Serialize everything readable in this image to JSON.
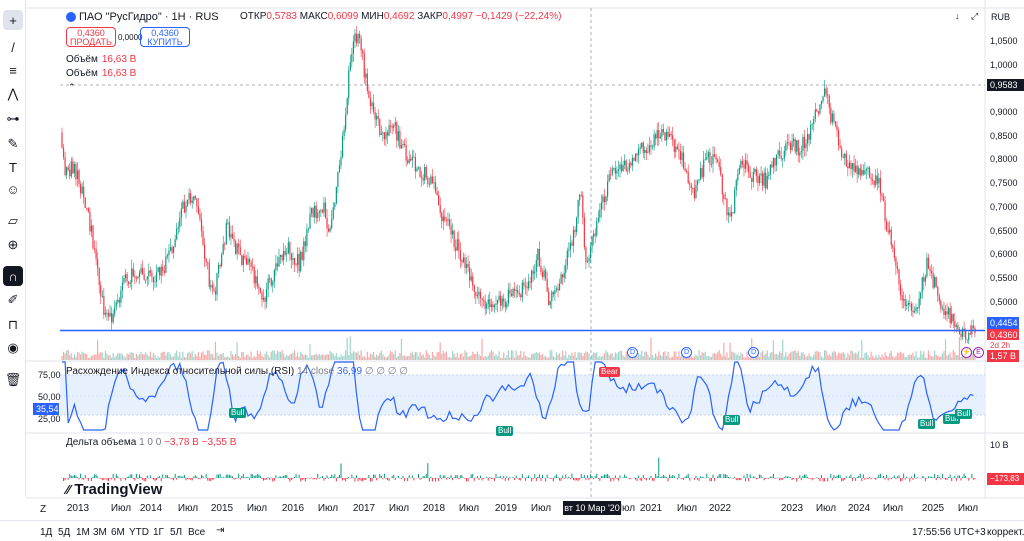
{
  "toolbar": {
    "tools": [
      {
        "name": "crosshair-icon",
        "glyph": "+"
      },
      {
        "name": "trendline-icon",
        "glyph": "/"
      },
      {
        "name": "horizontal-lines-icon",
        "glyph": "≡"
      },
      {
        "name": "pattern-icon",
        "glyph": "⋀"
      },
      {
        "name": "fib-icon",
        "glyph": "⊶"
      },
      {
        "name": "brush-icon",
        "glyph": "✎"
      },
      {
        "name": "text-icon",
        "glyph": "T"
      },
      {
        "name": "emoji-icon",
        "glyph": "☺"
      },
      {
        "name": "ruler-icon",
        "glyph": "▱"
      },
      {
        "name": "zoom-icon",
        "glyph": "⊕"
      },
      {
        "name": "magnet-icon",
        "glyph": "∩"
      },
      {
        "name": "pencil-lock-icon",
        "glyph": "✐"
      },
      {
        "name": "lock-icon",
        "glyph": "⊓"
      },
      {
        "name": "eye-icon",
        "glyph": "◉"
      },
      {
        "name": "trash-icon",
        "glyph": "🗑"
      }
    ]
  },
  "header": {
    "symbol": "ПАО \"РусГидро\" · 1Н · RUS",
    "ohlc": [
      {
        "k": "ОТКР",
        "v": "0,5783"
      },
      {
        "k": "МАКС",
        "v": "0,6099"
      },
      {
        "k": "МИН",
        "v": "0,4692"
      },
      {
        "k": "ЗАКР",
        "v": "0,4997"
      },
      {
        "k": "",
        "v": "−0,1429 (−22,24%)"
      }
    ],
    "currency": "RUB"
  },
  "trade": {
    "sell_price": "0,4360",
    "sell_label": "ПРОДАТЬ",
    "spread": "0,0000",
    "buy_price": "0,4360",
    "buy_label": "КУПИТЬ"
  },
  "volume_legend": [
    {
      "label": "Объём",
      "value": "16,63 B"
    },
    {
      "label": "Объём",
      "value": "16,63 B"
    }
  ],
  "price_axis": {
    "ticks": [
      "1,0500",
      "1,0000",
      "0,9500",
      "0,9000",
      "0,8500",
      "0,8000",
      "0,7500",
      "0,7000",
      "0,6500",
      "0,6000",
      "0,5500",
      "0,5000"
    ],
    "crosshair_price": "0,9583",
    "line_price": "0,4454",
    "last_price": "0,4360",
    "countdown": "2d 2h",
    "volume_tag": "1,57 B"
  },
  "rsi": {
    "legend": "Расхождение Индекса относительной силы (RSI)",
    "params": "14 close",
    "value": "36,99",
    "extras": "∅ ∅ ∅ ∅",
    "ticks": [
      "75,00",
      "50,00",
      "25,00"
    ],
    "current": "35,54",
    "bull": "Bull",
    "bear": "Bear"
  },
  "delta": {
    "legend": "Дельта объема",
    "params": "1  0  0",
    "v1": "−3,78 B",
    "v2": "−3,55 B",
    "tick": "10 B",
    "current": "−173,83 M"
  },
  "xaxis": {
    "labels": [
      "2013",
      "Июл",
      "2014",
      "Июл",
      "2015",
      "Июл",
      "2016",
      "Июл",
      "2017",
      "Июл",
      "2018",
      "Июл",
      "2019",
      "Июл",
      "Июл",
      "2021",
      "Июл",
      "2022",
      "2023",
      "Июл",
      "2024",
      "Июл",
      "2025",
      "Июл"
    ],
    "cursor": "вт 10 Мар '20"
  },
  "bottom": {
    "ranges": [
      "1Д",
      "5Д",
      "1М",
      "3М",
      "6М",
      "YTD",
      "1Г",
      "5Л",
      "Все"
    ],
    "clock": "17:55:56 UTC+3",
    "correction": "коррект.",
    "tz": "Z",
    "logo": "TradingView"
  },
  "chart_data": {
    "type": "candlestick",
    "title": "ПАО \"РусГидро\" · 1Н · RUS",
    "x_range": [
      "2012-11",
      "2025-08"
    ],
    "ylim": [
      0.43,
      1.08
    ],
    "y_scale": "linear",
    "grid": false,
    "series": [
      {
        "name": "close",
        "points": [
          [
            "2012-11",
            0.85
          ],
          [
            "2012-12",
            0.76
          ],
          [
            "2013-01",
            0.78
          ],
          [
            "2013-03",
            0.73
          ],
          [
            "2013-05",
            0.6
          ],
          [
            "2013-06",
            0.5
          ],
          [
            "2013-08",
            0.47
          ],
          [
            "2013-10",
            0.55
          ],
          [
            "2013-12",
            0.57
          ],
          [
            "2014-02",
            0.55
          ],
          [
            "2014-04",
            0.56
          ],
          [
            "2014-06",
            0.62
          ],
          [
            "2014-07",
            0.68
          ],
          [
            "2014-09",
            0.72
          ],
          [
            "2014-10",
            0.69
          ],
          [
            "2014-12",
            0.55
          ],
          [
            "2015-01",
            0.53
          ],
          [
            "2015-03",
            0.66
          ],
          [
            "2015-05",
            0.6
          ],
          [
            "2015-07",
            0.57
          ],
          [
            "2015-09",
            0.51
          ],
          [
            "2015-11",
            0.57
          ],
          [
            "2016-01",
            0.62
          ],
          [
            "2016-03",
            0.58
          ],
          [
            "2016-05",
            0.68
          ],
          [
            "2016-07",
            0.7
          ],
          [
            "2016-08",
            0.64
          ],
          [
            "2016-10",
            0.8
          ],
          [
            "2016-12",
            1.05
          ],
          [
            "2017-01",
            1.04
          ],
          [
            "2017-03",
            0.9
          ],
          [
            "2017-05",
            0.84
          ],
          [
            "2017-07",
            0.86
          ],
          [
            "2017-09",
            0.8
          ],
          [
            "2017-11",
            0.78
          ],
          [
            "2018-01",
            0.75
          ],
          [
            "2018-03",
            0.68
          ],
          [
            "2018-05",
            0.63
          ],
          [
            "2018-07",
            0.58
          ],
          [
            "2018-09",
            0.51
          ],
          [
            "2018-11",
            0.5
          ],
          [
            "2019-01",
            0.5
          ],
          [
            "2019-03",
            0.53
          ],
          [
            "2019-05",
            0.53
          ],
          [
            "2019-07",
            0.6
          ],
          [
            "2019-09",
            0.5
          ],
          [
            "2019-11",
            0.56
          ],
          [
            "2020-01",
            0.65
          ],
          [
            "2020-02",
            0.75
          ],
          [
            "2020-03",
            0.58
          ],
          [
            "2020-05",
            0.68
          ],
          [
            "2020-07",
            0.76
          ],
          [
            "2020-09",
            0.78
          ],
          [
            "2020-11",
            0.8
          ],
          [
            "2021-01",
            0.82
          ],
          [
            "2021-03",
            0.85
          ],
          [
            "2021-05",
            0.84
          ],
          [
            "2021-07",
            0.8
          ],
          [
            "2021-09",
            0.72
          ],
          [
            "2021-11",
            0.8
          ],
          [
            "2022-01",
            0.78
          ],
          [
            "2022-03",
            0.66
          ],
          [
            "2022-05",
            0.8
          ],
          [
            "2022-07",
            0.76
          ],
          [
            "2022-09",
            0.75
          ],
          [
            "2022-11",
            0.8
          ],
          [
            "2023-01",
            0.82
          ],
          [
            "2023-03",
            0.82
          ],
          [
            "2023-05",
            0.87
          ],
          [
            "2023-07",
            0.95
          ],
          [
            "2023-08",
            0.88
          ],
          [
            "2023-10",
            0.8
          ],
          [
            "2023-12",
            0.78
          ],
          [
            "2024-02",
            0.77
          ],
          [
            "2024-04",
            0.74
          ],
          [
            "2024-06",
            0.62
          ],
          [
            "2024-08",
            0.51
          ],
          [
            "2024-10",
            0.49
          ],
          [
            "2024-12",
            0.58
          ],
          [
            "2025-02",
            0.51
          ],
          [
            "2025-04",
            0.47
          ],
          [
            "2025-06",
            0.44
          ]
        ]
      },
      {
        "name": "horizontal_line",
        "value": 0.4454
      }
    ]
  }
}
